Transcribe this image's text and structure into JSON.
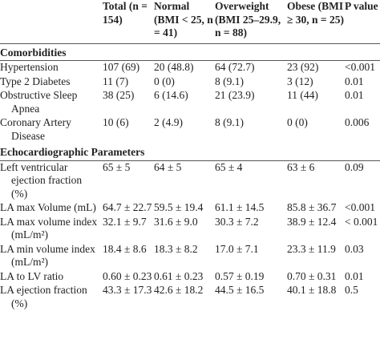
{
  "table": {
    "header": [
      "",
      "Total (n = 154)",
      "Normal (BMI < 25, n = 41)",
      "Overweight (BMI 25–29.9, n = 88)",
      "Obese (BMI ≥ 30, n = 25)",
      "P value"
    ],
    "sections": [
      {
        "title": "Comorbidities",
        "rows": [
          [
            "Hypertension",
            "107 (69)",
            "20 (48.8)",
            "64 (72.7)",
            "23 (92)",
            "<0.001"
          ],
          [
            "Type 2 Diabetes",
            "11 (7)",
            "0 (0)",
            "8 (9.1)",
            "3 (12)",
            "0.01"
          ],
          [
            "Obstructive Sleep Apnea",
            "38 (25)",
            "6 (14.6)",
            "21 (23.9)",
            "11 (44)",
            "0.01"
          ],
          [
            "Coronary Artery Disease",
            "10 (6)",
            "2 (4.9)",
            "8 (9.1)",
            "0 (0)",
            "0.006"
          ]
        ]
      },
      {
        "title": "Echocardiographic Parameters",
        "rows": [
          [
            "Left ventricular ejection fraction (%)",
            "65 ± 5",
            "64 ± 5",
            "65 ± 4",
            "63 ± 6",
            "0.09"
          ],
          [
            "LA max Volume (mL)",
            "64.7 ± 22.7",
            "59.5 ± 19.4",
            "61.1 ± 14.5",
            "85.8 ± 36.7",
            "<0.001"
          ],
          [
            "LA max volume index (mL/m²)",
            "32.1 ± 9.7",
            "31.6 ± 9.0",
            "30.3 ± 7.2",
            "38.9 ± 12.4",
            "< 0.001"
          ],
          [
            "LA min volume index (mL/m²)",
            "18.4 ± 8.6",
            "18.3 ± 8.2",
            "17.0 ± 7.1",
            "23.3 ± 11.9",
            "0.03"
          ],
          [
            "LA to LV ratio",
            "0.60 ± 0.23",
            "0.61 ± 0.23",
            "0.57 ± 0.19",
            "0.70 ± 0.31",
            "0.01"
          ],
          [
            "LA ejection fraction (%)",
            "43.3 ± 17.3",
            "42.6 ± 18.2",
            "44.5 ± 16.5",
            "40.1 ± 18.8",
            "0.5"
          ]
        ]
      }
    ]
  }
}
